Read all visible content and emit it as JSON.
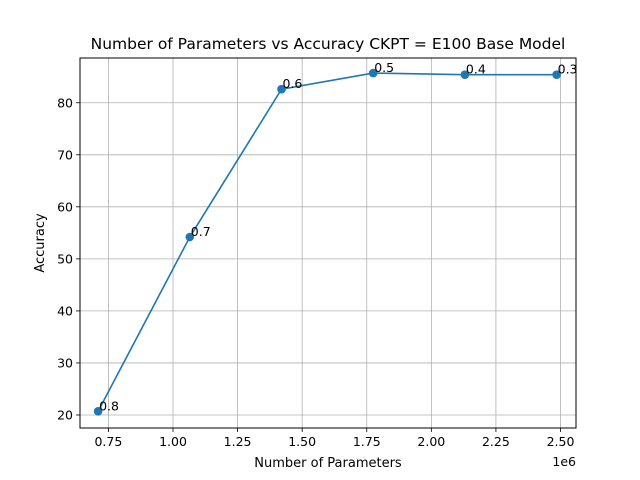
{
  "chart_data": {
    "type": "line",
    "title": "Number of Parameters vs Accuracy CKPT = E100 Base Model",
    "xlabel": "Number of Parameters",
    "ylabel": "Accuracy",
    "x_offset_label": "1e6",
    "x_scale_factor": 1000000,
    "xlim": [
      0.64,
      2.56
    ],
    "ylim": [
      17.5,
      88.6
    ],
    "grid": true,
    "x_ticks": [
      0.75,
      1.0,
      1.25,
      1.5,
      1.75,
      2.0,
      2.25,
      2.5
    ],
    "x_tick_labels": [
      "0.75",
      "1.00",
      "1.25",
      "1.50",
      "1.75",
      "2.00",
      "2.25",
      "2.50"
    ],
    "y_ticks": [
      20,
      30,
      40,
      50,
      60,
      70,
      80
    ],
    "y_tick_labels": [
      "20",
      "30",
      "40",
      "50",
      "60",
      "70",
      "80"
    ],
    "series": [
      {
        "color": "#1f77b4",
        "marker": "circle",
        "x": [
          0.71,
          1.065,
          1.42,
          1.775,
          2.13,
          2.485
        ],
        "y": [
          20.7,
          54.2,
          82.6,
          85.7,
          85.4,
          85.4
        ],
        "point_labels": [
          "0.8",
          "0.7",
          "0.6",
          "0.5",
          "0.4",
          "0.3"
        ]
      }
    ]
  }
}
